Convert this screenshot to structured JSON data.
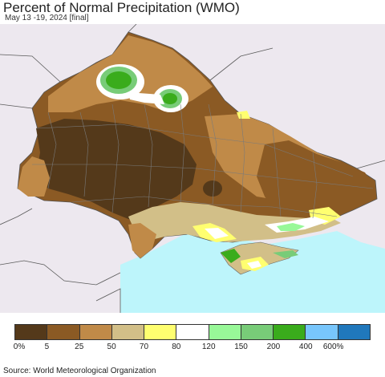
{
  "header": {
    "title": "Percent of Normal Precipitation (WMO)",
    "subtitle": "May 13 -19, 2024 [final]"
  },
  "legend": {
    "labels": [
      "0%",
      "5",
      "25",
      "50",
      "70",
      "80",
      "120",
      "150",
      "200",
      "400",
      "600%"
    ],
    "colors": [
      "#54391a",
      "#8b5a24",
      "#c08a48",
      "#d2bf88",
      "#ffff70",
      "#ffffff",
      "#98f898",
      "#78cc78",
      "#3aac1c",
      "#78c6fc",
      "#2078bc"
    ]
  },
  "map_colors": {
    "water": "#bdf5fb",
    "outside": "#ede8ef",
    "border": "#7a7a7a"
  },
  "footer": {
    "source": "Source: World Meteorological Organization"
  }
}
